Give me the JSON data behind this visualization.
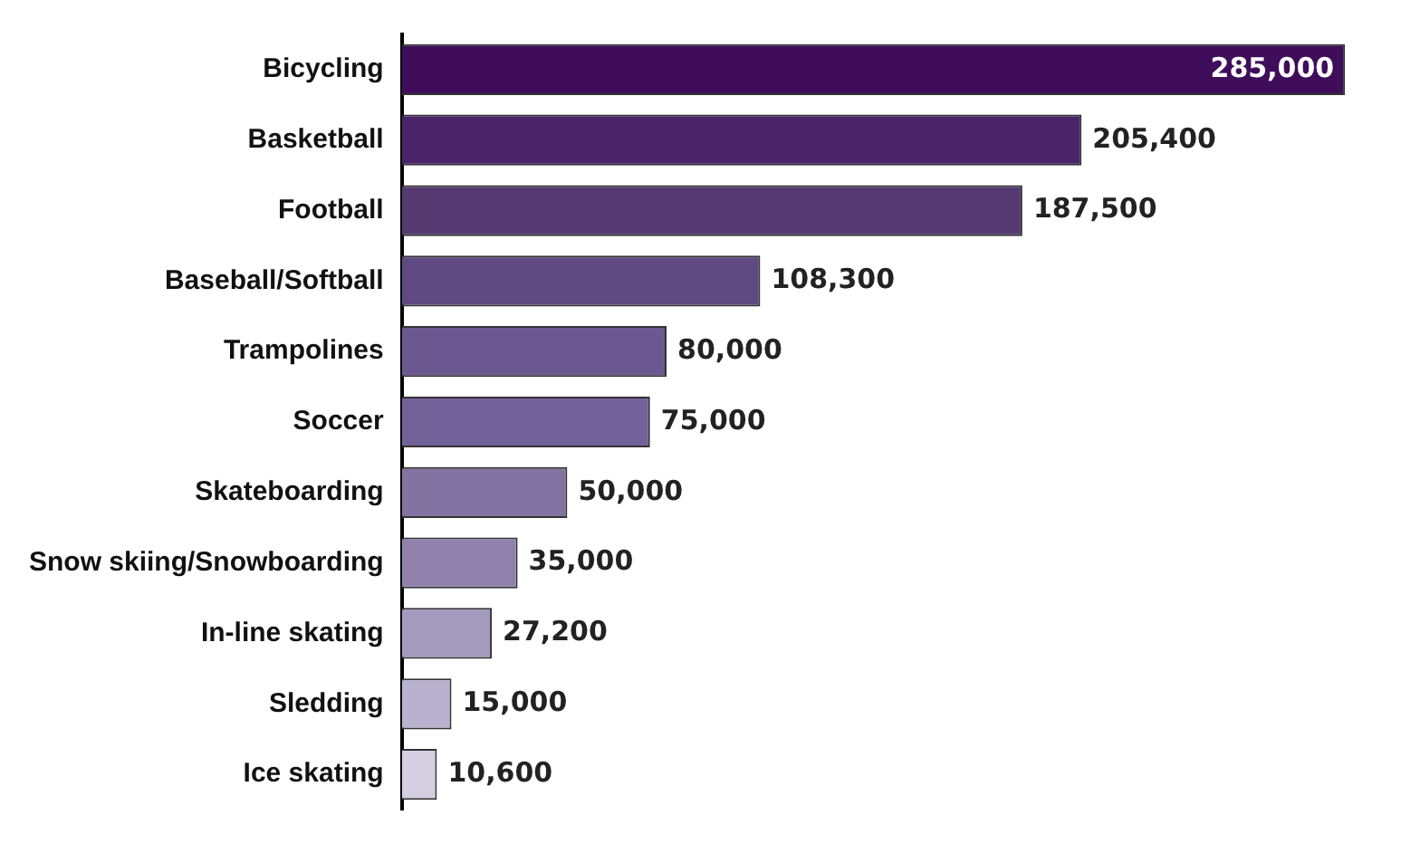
{
  "chart_data": {
    "type": "bar",
    "orientation": "horizontal",
    "categories": [
      "Bicycling",
      "Basketball",
      "Football",
      "Baseball/Softball",
      "Trampolines",
      "Soccer",
      "Skateboarding",
      "Snow skiing/Snowboarding",
      "In-line skating",
      "Sledding",
      "Ice skating"
    ],
    "values": [
      285000,
      205400,
      187500,
      108300,
      80000,
      75000,
      50000,
      35000,
      27200,
      15000,
      10600
    ],
    "colors": [
      "#3f0d5a",
      "#4a2468",
      "#553a72",
      "#5e4980",
      "#6c5891",
      "#73619a",
      "#8373a3",
      "#9182ad",
      "#a59bbf",
      "#b9b2cf",
      "#d3cee0"
    ],
    "value_labels": [
      "285,000",
      "205,400",
      "187,500",
      "108,300",
      "80,000",
      "75,000",
      "50,000",
      "35,000",
      "27,200",
      "15,000",
      "10,600"
    ],
    "grid": false,
    "legend": false,
    "tick_labels": "y"
  }
}
